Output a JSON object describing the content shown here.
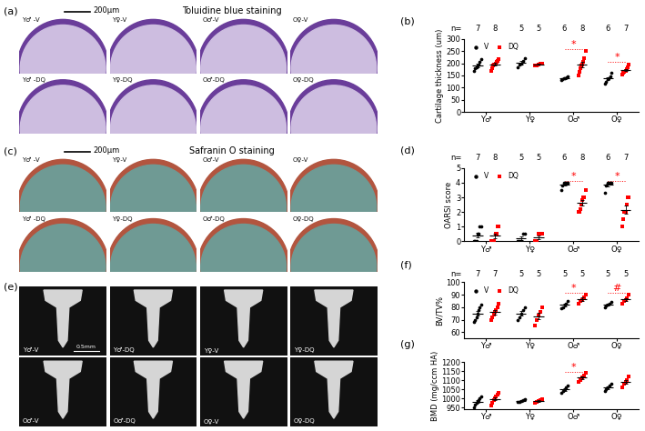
{
  "panels": [
    {
      "panel_label": "(a)",
      "title": "Toluidine blue staining",
      "scale_bar": "200μm",
      "rows": [
        [
          "Y♂ -V",
          "Y♀-V",
          "O♂-V",
          "O♀-V"
        ],
        [
          "Y♂ -DQ",
          "Y♀-DQ",
          "O♂-DQ",
          "O♀-DQ"
        ]
      ]
    },
    {
      "panel_label": "(c)",
      "title": "Safranin O staining",
      "scale_bar": "200μm",
      "rows": [
        [
          "Y♂ -V",
          "Y♀-V",
          "O♂-V",
          "O♀-V"
        ],
        [
          "Y♂ -DQ",
          "Y♀-DQ",
          "O♂-DQ",
          "O♀-DQ"
        ]
      ]
    },
    {
      "panel_label": "(e)",
      "scale_bar": "0.5mm",
      "rows": [
        [
          "Y♂-V",
          "Y♂-DQ",
          "Y♀-V",
          "Y♀-DQ"
        ],
        [
          "O♂-V",
          "O♂-DQ",
          "O♀-V",
          "O♀-DQ"
        ]
      ]
    }
  ],
  "chart_data": [
    {
      "panel_label": "(b)",
      "type": "scatter",
      "ylabel": "Cartilage thickness (um)",
      "categories": [
        "Y♂",
        "Y♀",
        "O♂",
        "O♀"
      ],
      "n_label": "n=",
      "n": [
        [
          7,
          8
        ],
        [
          5,
          5
        ],
        [
          6,
          8
        ],
        [
          6,
          7
        ]
      ],
      "ylim": [
        0,
        300
      ],
      "yticks": [
        0,
        50,
        100,
        150,
        200,
        250,
        300
      ],
      "legend": "upper left",
      "series": [
        {
          "name": "V",
          "color": "#000000",
          "marker": "circle",
          "values": [
            [
              170,
              180,
              185,
              190,
              195,
              205,
              215
            ],
            [
              185,
              195,
              200,
              210,
              220
            ],
            [
              130,
              135,
              138,
              140,
              142,
              145
            ],
            [
              115,
              125,
              135,
              140,
              145,
              160
            ]
          ],
          "means": [
            191,
            202,
            138,
            137
          ],
          "sem": [
            6,
            6,
            2,
            6
          ]
        },
        {
          "name": "DQ",
          "color": "#ff0000",
          "marker": "square",
          "values": [
            [
              170,
              180,
              190,
              195,
              200,
              205,
              210,
              215
            ],
            [
              190,
              192,
              195,
              198,
              200
            ],
            [
              150,
              165,
              180,
              190,
              195,
              205,
              220,
              250
            ],
            [
              155,
              160,
              165,
              170,
              175,
              185,
              195
            ]
          ],
          "means": [
            196,
            195,
            194,
            172
          ],
          "sem": [
            5,
            2,
            11,
            5
          ]
        }
      ],
      "annotations": [
        {
          "category": "O♂",
          "text": "*",
          "color": "#ff0000"
        },
        {
          "category": "O♀",
          "text": "*",
          "color": "#ff0000"
        }
      ]
    },
    {
      "panel_label": "(d)",
      "type": "scatter",
      "ylabel": "OARSI score",
      "categories": [
        "Y♂",
        "Y♀",
        "O♂",
        "O♀"
      ],
      "n_label": "n=",
      "n": [
        [
          7,
          8
        ],
        [
          5,
          5
        ],
        [
          6,
          8
        ],
        [
          6,
          7
        ]
      ],
      "ylim": [
        0,
        5
      ],
      "yticks": [
        0,
        1,
        2,
        3,
        4,
        5
      ],
      "legend": "upper left",
      "series": [
        {
          "name": "V",
          "color": "#000000",
          "marker": "circle",
          "values": [
            [
              0,
              0,
              0,
              0.5,
              0.5,
              1,
              1
            ],
            [
              0,
              0,
              0,
              0.5,
              0.5
            ],
            [
              3.5,
              3.8,
              4,
              4,
              4,
              4
            ],
            [
              3.3,
              3.8,
              4,
              4,
              4,
              4
            ]
          ],
          "means": [
            0.43,
            0.2,
            3.88,
            3.85
          ],
          "sem": [
            0.17,
            0.12,
            0.08,
            0.11
          ]
        },
        {
          "name": "DQ",
          "color": "#ff0000",
          "marker": "square",
          "values": [
            [
              0,
              0,
              0,
              0,
              0.5,
              0.5,
              1,
              1
            ],
            [
              0,
              0,
              0.5,
              0.5,
              0.5
            ],
            [
              2,
              2,
              2.2,
              2.5,
              2.8,
              3,
              3,
              3.5
            ],
            [
              1,
              1.5,
              2,
              2,
              2.5,
              3,
              3
            ]
          ],
          "means": [
            0.38,
            0.3,
            2.63,
            2.14
          ],
          "sem": [
            0.15,
            0.12,
            0.19,
            0.28
          ]
        }
      ],
      "annotations": [
        {
          "category": "O♂",
          "text": "*",
          "color": "#ff0000"
        },
        {
          "category": "O♀",
          "text": "*",
          "color": "#ff0000"
        }
      ]
    },
    {
      "panel_label": "(f)",
      "type": "scatter",
      "ylabel": "BV/TV%",
      "categories": [
        "Y♂",
        "Y♀",
        "O♂",
        "O♀"
      ],
      "n_label": "n=",
      "n": [
        [
          7,
          7
        ],
        [
          5,
          5
        ],
        [
          5,
          5
        ],
        [
          5,
          5
        ]
      ],
      "ylim": [
        55,
        100
      ],
      "yticks": [
        60,
        70,
        80,
        90,
        100
      ],
      "legend": "upper left",
      "series": [
        {
          "name": "V",
          "color": "#000000",
          "marker": "circle",
          "values": [
            [
              68,
              70,
              72,
              75,
              78,
              80,
              82
            ],
            [
              70,
              72,
              75,
              78,
              80
            ],
            [
              79,
              80,
              82,
              83,
              85
            ],
            [
              80,
              81,
              82,
              83,
              84
            ]
          ],
          "means": [
            75,
            75,
            81.8,
            82
          ],
          "sem": [
            2,
            1.8,
            1,
            0.7
          ]
        },
        {
          "name": "DQ",
          "color": "#ff0000",
          "marker": "square",
          "values": [
            [
              70,
              72,
              74,
              76,
              78,
              80,
              83
            ],
            [
              65,
              70,
              73,
              76,
              80
            ],
            [
              83,
              85,
              86,
              88,
              90
            ],
            [
              83,
              85,
              86,
              87,
              90
            ]
          ],
          "means": [
            76.1,
            72.8,
            86.4,
            86.2
          ],
          "sem": [
            1.7,
            2.6,
            1.2,
            1.2
          ]
        }
      ],
      "annotations": [
        {
          "category": "O♂",
          "text": "*",
          "color": "#ff0000"
        },
        {
          "category": "O♀",
          "text": "#",
          "color": "#ff0000"
        }
      ]
    },
    {
      "panel_label": "(g)",
      "type": "scatter",
      "ylabel": "BMD (mg/ccm HA)",
      "categories": [
        "Y♂",
        "Y♀",
        "O♂",
        "O♀"
      ],
      "ylim": [
        940,
        1200
      ],
      "yticks": [
        950,
        1000,
        1050,
        1100,
        1150,
        1200
      ],
      "series": [
        {
          "name": "V",
          "color": "#000000",
          "marker": "circle",
          "values": [
            [
              950,
              965,
              975,
              985,
              990,
              1000,
              1010
            ],
            [
              980,
              982,
              985,
              990,
              995
            ],
            [
              1030,
              1040,
              1050,
              1060,
              1070
            ],
            [
              1040,
              1050,
              1060,
              1070,
              1080
            ]
          ],
          "means": [
            982,
            986,
            1050,
            1060
          ],
          "sem": [
            8,
            3,
            7,
            7
          ]
        },
        {
          "name": "DQ",
          "color": "#ff0000",
          "marker": "square",
          "values": [
            [
              960,
              975,
              990,
              1000,
              1010,
              1020,
              1030
            ],
            [
              978,
              982,
              985,
              990,
              995
            ],
            [
              1090,
              1100,
              1115,
              1125,
              1140
            ],
            [
              1060,
              1080,
              1090,
              1100,
              1120
            ]
          ],
          "means": [
            998,
            986,
            1114,
            1090
          ],
          "sem": [
            9,
            3,
            9,
            10
          ]
        }
      ],
      "annotations": [
        {
          "category": "O♂",
          "text": "*",
          "color": "#ff0000"
        }
      ]
    }
  ]
}
